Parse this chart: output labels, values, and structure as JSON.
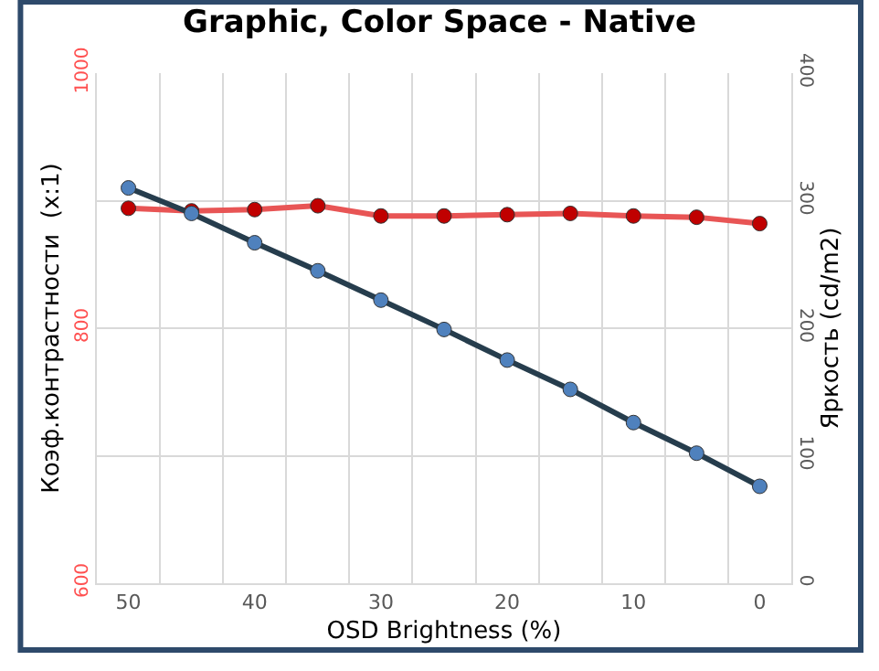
{
  "chart_data": {
    "type": "line",
    "title": "Graphic, Color Space - Native",
    "xlabel": "OSD Brightness (%)",
    "ylabel": "Коэф.контрастности  (x:1)",
    "y2label": "Яркость (cd/m2)",
    "x": [
      50,
      45,
      40,
      35,
      30,
      25,
      20,
      15,
      10,
      5,
      0
    ],
    "series": [
      {
        "color": "#e85555",
        "colors": [
          "#c00000",
          "#c00000",
          "#c00000",
          "#c00000",
          "#c00000",
          "#c00000",
          "#c00000",
          "#c00000",
          "#c00000",
          "#c00000",
          "#c00000"
        ],
        "values": [
          894,
          892,
          893,
          896,
          888,
          888,
          889,
          890,
          888,
          887,
          882
        ]
      },
      {
        "color": "#263d4d",
        "colors": [
          "#4f81bd",
          "#4f81bd",
          "#4f81bd",
          "#4f81bd",
          "#4f81bd",
          "#4f81bd",
          "#4f81bd",
          "#4f81bd",
          "#4f81bd",
          "#4f81bd",
          "#4f81bd"
        ],
        "axis": "y2",
        "values": [
          310,
          290,
          267,
          245,
          222,
          199,
          175,
          152,
          126,
          102,
          76
        ]
      }
    ],
    "xlim": [
      52.5,
      -2.5
    ],
    "xticks": [
      50,
      {
        "value": 47.5,
        "label": null
      },
      {
        "value": 42.5,
        "label": null
      },
      40,
      {
        "value": 37.5,
        "label": null
      },
      {
        "value": 32.5,
        "label": null
      },
      30,
      {
        "value": 27.5,
        "label": null
      },
      {
        "value": 22.5,
        "label": null
      },
      20,
      {
        "value": 17.5,
        "label": null
      },
      {
        "value": 12.5,
        "label": null
      },
      10,
      {
        "value": 7.5,
        "label": null
      },
      {
        "value": 2.5,
        "label": null
      },
      0
    ],
    "ylim": [
      600,
      1000
    ],
    "yticks": [
      600,
      {
        "value": 700,
        "label": null
      },
      800,
      {
        "value": 900,
        "label": null
      },
      1000
    ],
    "y2lim": [
      0,
      400
    ],
    "y2ticks": [
      0,
      100,
      200,
      300,
      400
    ],
    "grid": true,
    "marker": "circle",
    "line_style": "solid"
  }
}
